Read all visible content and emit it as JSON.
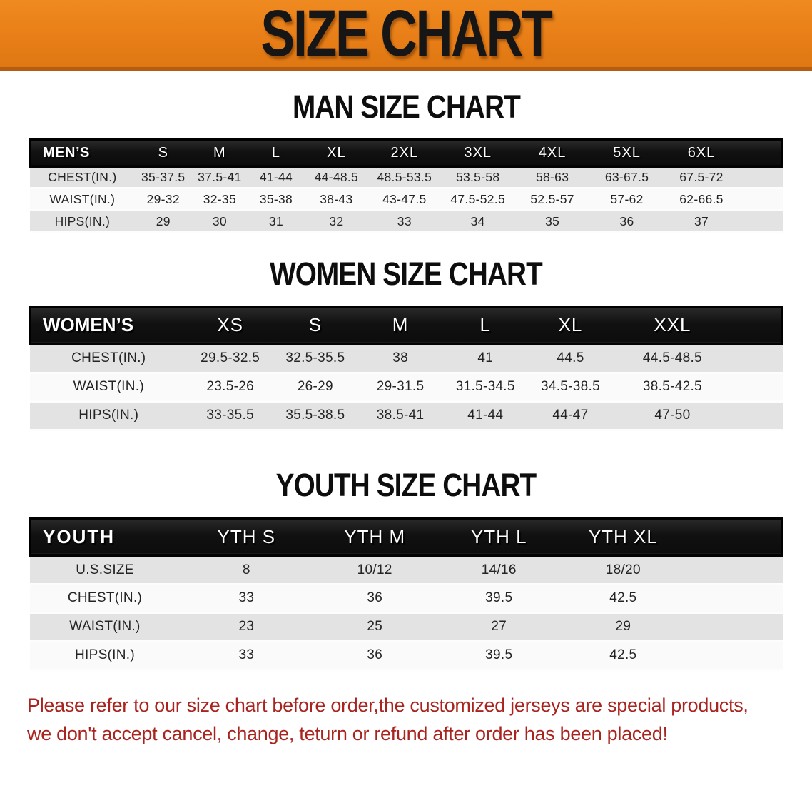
{
  "banner": {
    "title": "SIZE CHART",
    "bg_color": "#e87e17",
    "text_color": "#161616"
  },
  "sections": [
    {
      "id": "men",
      "heading": "MAN SIZE CHART",
      "group_label": "MEN’S",
      "columns": [
        "S",
        "M",
        "L",
        "XL",
        "2XL",
        "3XL",
        "4XL",
        "5XL",
        "6XL"
      ],
      "rows": [
        {
          "label": "CHEST(IN.)",
          "values": [
            "35-37.5",
            "37.5-41",
            "41-44",
            "44-48.5",
            "48.5-53.5",
            "53.5-58",
            "58-63",
            "63-67.5",
            "67.5-72"
          ]
        },
        {
          "label": "WAIST(IN.)",
          "values": [
            "29-32",
            "32-35",
            "35-38",
            "38-43",
            "43-47.5",
            "47.5-52.5",
            "52.5-57",
            "57-62",
            "62-66.5"
          ]
        },
        {
          "label": "HIPS(IN.)",
          "values": [
            "29",
            "30",
            "31",
            "32",
            "33",
            "34",
            "35",
            "36",
            "37"
          ]
        }
      ]
    },
    {
      "id": "women",
      "heading": "WOMEN SIZE CHART",
      "group_label": "WOMEN’S",
      "columns": [
        "XS",
        "S",
        "M",
        "L",
        "XL",
        "XXL"
      ],
      "rows": [
        {
          "label": "CHEST(IN.)",
          "values": [
            "29.5-32.5",
            "32.5-35.5",
            "38",
            "41",
            "44.5",
            "44.5-48.5"
          ]
        },
        {
          "label": "WAIST(IN.)",
          "values": [
            "23.5-26",
            "26-29",
            "29-31.5",
            "31.5-34.5",
            "34.5-38.5",
            "38.5-42.5"
          ]
        },
        {
          "label": "HIPS(IN.)",
          "values": [
            "33-35.5",
            "35.5-38.5",
            "38.5-41",
            "41-44",
            "44-47",
            "47-50"
          ]
        }
      ]
    },
    {
      "id": "youth",
      "heading": "YOUTH SIZE CHART",
      "group_label": "YOUTH",
      "columns": [
        "YTH S",
        "YTH M",
        "YTH L",
        "YTH XL"
      ],
      "rows": [
        {
          "label": "U.S.SIZE",
          "values": [
            "8",
            "10/12",
            "14/16",
            "18/20"
          ]
        },
        {
          "label": "CHEST(IN.)",
          "values": [
            "33",
            "36",
            "39.5",
            "42.5"
          ]
        },
        {
          "label": "WAIST(IN.)",
          "values": [
            "23",
            "25",
            "27",
            "29"
          ]
        },
        {
          "label": "HIPS(IN.)",
          "values": [
            "33",
            "36",
            "39.5",
            "42.5"
          ]
        }
      ]
    }
  ],
  "footer": {
    "line1": "Please refer to our size chart before order,the customized jerseys are special products,",
    "line2": "we don't accept cancel, change, teturn or refund after order has been placed!",
    "text_color": "#a9241f"
  },
  "colors": {
    "banner_orange": "#e87e17",
    "banner_border": "#b45d10",
    "header_black": "#161616",
    "header_text": "#ffffff",
    "row_gray": "#e3e3e3",
    "row_white": "#fafafa",
    "note_red": "#a9241f"
  }
}
